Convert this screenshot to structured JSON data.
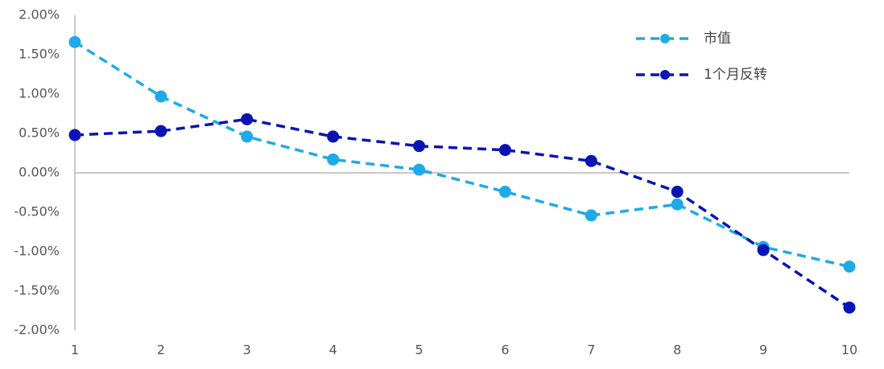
{
  "chart_data": {
    "type": "line",
    "x": [
      1,
      2,
      3,
      4,
      5,
      6,
      7,
      8,
      9,
      10
    ],
    "xlim": [
      1,
      10
    ],
    "xticks": [
      1,
      2,
      3,
      4,
      5,
      6,
      7,
      8,
      9,
      10
    ],
    "ylim": [
      -2,
      2
    ],
    "yticks": [
      {
        "value": 2,
        "label": "2.00%"
      },
      {
        "value": 1.5,
        "label": "1.50%"
      },
      {
        "value": 1,
        "label": "1.00%"
      },
      {
        "value": 0.5,
        "label": "0.50%"
      },
      {
        "value": 0,
        "label": "0.00%"
      },
      {
        "value": -0.5,
        "label": "-0.50%"
      },
      {
        "value": -1,
        "label": "-1.00%"
      },
      {
        "value": -1.5,
        "label": "-1.50%"
      },
      {
        "value": -2,
        "label": "-2.00%"
      }
    ],
    "legend": "upper right",
    "series": [
      {
        "name": "市值",
        "color": "#1eaae7",
        "values": [
          1.66,
          0.97,
          0.46,
          0.17,
          0.04,
          -0.24,
          -0.54,
          -0.4,
          -0.94,
          -1.19
        ]
      },
      {
        "name": "1个月反转",
        "color": "#0a14b4",
        "values": [
          0.48,
          0.53,
          0.68,
          0.46,
          0.34,
          0.29,
          0.15,
          -0.24,
          -0.98,
          -1.71
        ]
      }
    ]
  }
}
